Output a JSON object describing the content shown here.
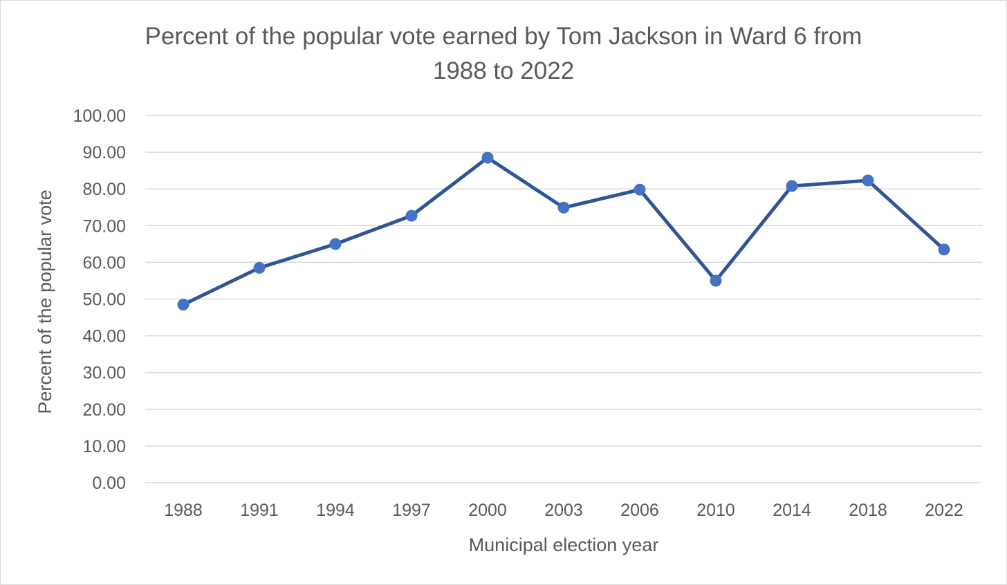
{
  "chart_data": {
    "type": "line",
    "title_line1": "Percent of the popular vote earned by Tom Jackson in Ward 6 from",
    "title_line2": "1988 to 2022",
    "xlabel": "Municipal election year",
    "ylabel": "Percent of the popular vote",
    "ylim": [
      0,
      100
    ],
    "yticks": [
      "0.00",
      "10.00",
      "20.00",
      "30.00",
      "40.00",
      "50.00",
      "60.00",
      "70.00",
      "80.00",
      "90.00",
      "100.00"
    ],
    "categories": [
      "1988",
      "1991",
      "1994",
      "1997",
      "2000",
      "2003",
      "2006",
      "2010",
      "2014",
      "2018",
      "2022"
    ],
    "values": [
      48.5,
      58.5,
      65.0,
      72.7,
      88.5,
      74.9,
      79.8,
      55.0,
      80.8,
      82.3,
      63.5
    ],
    "grid": true,
    "legend": "none",
    "line_color": "#2f5597",
    "marker_color": "#4472c4",
    "grid_color": "#d9d9d9"
  }
}
